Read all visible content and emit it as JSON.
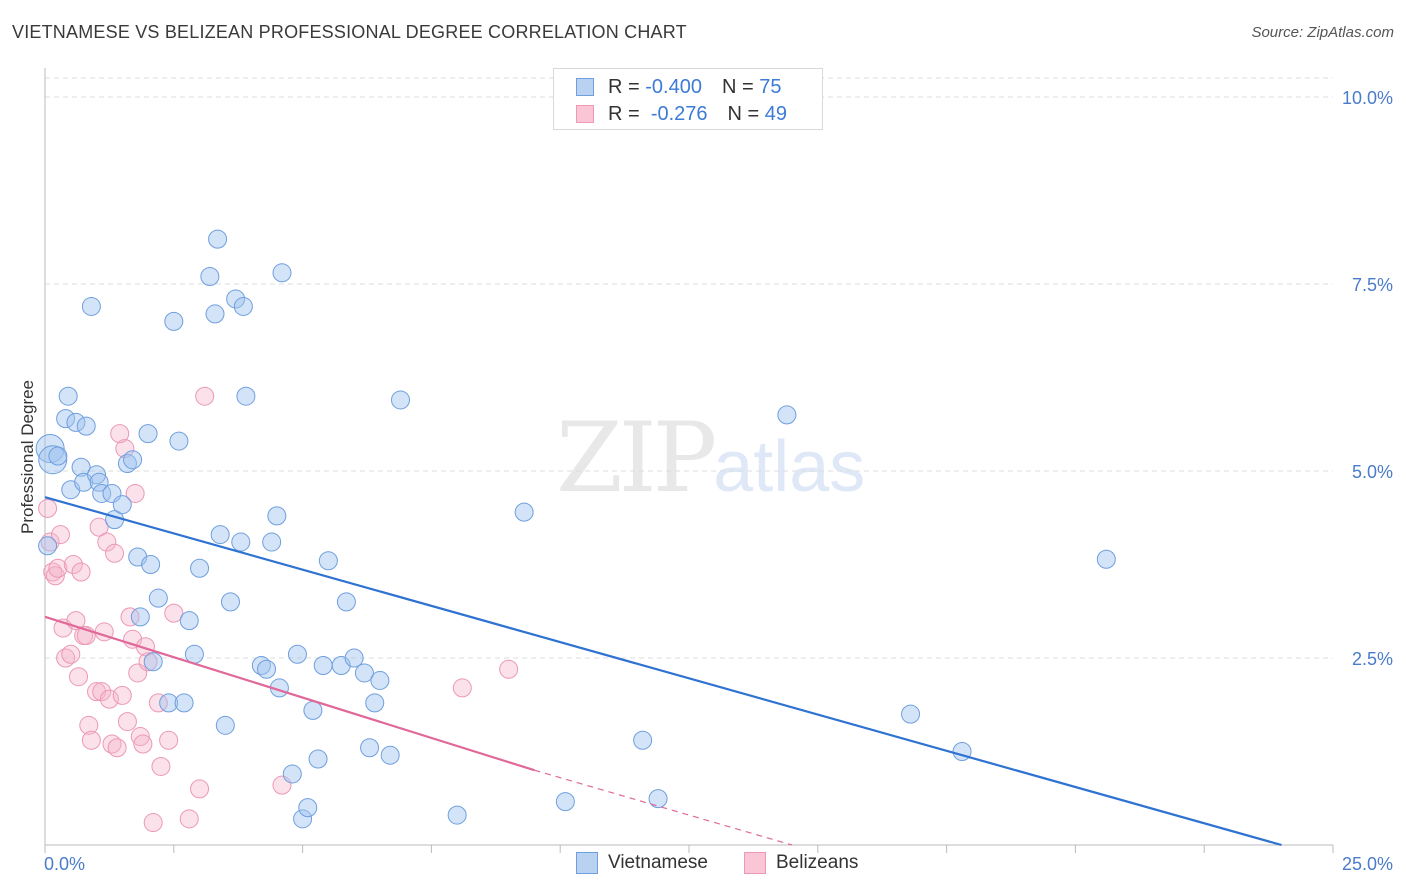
{
  "chart_data": {
    "type": "scatter",
    "title": "VIETNAMESE VS BELIZEAN PROFESSIONAL DEGREE CORRELATION CHART",
    "source": "Source: ZipAtlas.com",
    "xlabel": "",
    "ylabel": "Professional Degree",
    "xlim": [
      0,
      25
    ],
    "ylim": [
      0,
      10.5
    ],
    "x_ticks": [
      "0.0%",
      "25.0%"
    ],
    "y_ticks": [
      {
        "value": 2.5,
        "label": "2.5%"
      },
      {
        "value": 5.0,
        "label": "5.0%"
      },
      {
        "value": 7.5,
        "label": "7.5%"
      },
      {
        "value": 10.0,
        "label": "10.0%"
      }
    ],
    "watermark": {
      "zip": "ZIP",
      "atlas": "atlas"
    },
    "legend_top": [
      {
        "r_label": "R =",
        "r_value": "-0.400",
        "n_label": "N =",
        "n_value": "75"
      },
      {
        "r_label": "R =",
        "r_value": "-0.276",
        "n_label": "N =",
        "n_value": "49"
      }
    ],
    "series": [
      {
        "name": "Vietnamese",
        "color": "#8ab4e8",
        "line_color": "#2e72d2",
        "trend": {
          "x0": 0,
          "y0": 4.65,
          "x1": 24.0,
          "y1": 0.0
        },
        "points": [
          [
            0.1,
            5.3
          ],
          [
            0.15,
            5.15
          ],
          [
            0.25,
            5.2
          ],
          [
            0.4,
            5.7
          ],
          [
            0.45,
            6.0
          ],
          [
            0.5,
            4.75
          ],
          [
            0.6,
            5.65
          ],
          [
            0.7,
            5.05
          ],
          [
            0.75,
            4.85
          ],
          [
            0.8,
            5.6
          ],
          [
            0.9,
            7.2
          ],
          [
            1.0,
            4.95
          ],
          [
            1.05,
            4.85
          ],
          [
            1.1,
            4.7
          ],
          [
            1.3,
            4.7
          ],
          [
            1.35,
            4.35
          ],
          [
            1.5,
            4.55
          ],
          [
            1.6,
            5.1
          ],
          [
            1.7,
            5.15
          ],
          [
            1.8,
            3.85
          ],
          [
            1.85,
            3.05
          ],
          [
            2.0,
            5.5
          ],
          [
            2.05,
            3.75
          ],
          [
            2.1,
            2.45
          ],
          [
            2.2,
            3.3
          ],
          [
            2.4,
            1.9
          ],
          [
            2.5,
            7.0
          ],
          [
            2.6,
            5.4
          ],
          [
            2.7,
            1.9
          ],
          [
            2.8,
            3.0
          ],
          [
            2.9,
            2.55
          ],
          [
            3.0,
            3.7
          ],
          [
            3.2,
            7.6
          ],
          [
            3.3,
            7.1
          ],
          [
            3.35,
            8.1
          ],
          [
            3.4,
            4.15
          ],
          [
            3.5,
            1.6
          ],
          [
            3.6,
            3.25
          ],
          [
            3.7,
            7.3
          ],
          [
            3.8,
            4.05
          ],
          [
            3.85,
            7.2
          ],
          [
            3.9,
            6.0
          ],
          [
            4.2,
            2.4
          ],
          [
            4.3,
            2.35
          ],
          [
            4.4,
            4.05
          ],
          [
            4.5,
            4.4
          ],
          [
            4.55,
            2.1
          ],
          [
            4.6,
            7.65
          ],
          [
            4.8,
            0.95
          ],
          [
            4.9,
            2.55
          ],
          [
            5.0,
            0.35
          ],
          [
            5.1,
            0.5
          ],
          [
            5.2,
            1.8
          ],
          [
            5.3,
            1.15
          ],
          [
            5.4,
            2.4
          ],
          [
            5.5,
            3.8
          ],
          [
            5.75,
            2.4
          ],
          [
            5.85,
            3.25
          ],
          [
            6.0,
            2.5
          ],
          [
            6.2,
            2.3
          ],
          [
            6.3,
            1.3
          ],
          [
            6.4,
            1.9
          ],
          [
            6.5,
            2.2
          ],
          [
            6.7,
            1.2
          ],
          [
            6.9,
            5.95
          ],
          [
            8.0,
            0.4
          ],
          [
            9.3,
            4.45
          ],
          [
            10.1,
            0.58
          ],
          [
            11.6,
            1.4
          ],
          [
            11.9,
            0.62
          ],
          [
            14.4,
            5.75
          ],
          [
            16.8,
            1.75
          ],
          [
            17.8,
            1.25
          ],
          [
            20.6,
            3.82
          ],
          [
            0.05,
            4.0
          ]
        ]
      },
      {
        "name": "Belizeans",
        "color": "#f2a6c0",
        "line_color": "#e0699a",
        "trend": {
          "x0": 0,
          "y0": 3.05,
          "x1": 9.5,
          "y1": 1.0
        },
        "trend_dashed": {
          "x0": 9.5,
          "y0": 1.0,
          "x1": 14.5,
          "y1": 0.0
        },
        "points": [
          [
            0.05,
            4.5
          ],
          [
            0.1,
            4.05
          ],
          [
            0.15,
            3.65
          ],
          [
            0.2,
            3.6
          ],
          [
            0.25,
            3.7
          ],
          [
            0.3,
            4.15
          ],
          [
            0.35,
            2.9
          ],
          [
            0.4,
            2.5
          ],
          [
            0.5,
            2.55
          ],
          [
            0.55,
            3.75
          ],
          [
            0.6,
            3.0
          ],
          [
            0.65,
            2.25
          ],
          [
            0.7,
            3.65
          ],
          [
            0.75,
            2.8
          ],
          [
            0.8,
            2.8
          ],
          [
            0.85,
            1.6
          ],
          [
            0.9,
            1.4
          ],
          [
            1.0,
            2.05
          ],
          [
            1.05,
            4.25
          ],
          [
            1.1,
            2.05
          ],
          [
            1.15,
            2.85
          ],
          [
            1.2,
            4.05
          ],
          [
            1.25,
            1.95
          ],
          [
            1.3,
            1.35
          ],
          [
            1.35,
            3.9
          ],
          [
            1.4,
            1.3
          ],
          [
            1.5,
            2.0
          ],
          [
            1.55,
            5.3
          ],
          [
            1.6,
            1.65
          ],
          [
            1.65,
            3.05
          ],
          [
            1.7,
            2.75
          ],
          [
            1.75,
            4.7
          ],
          [
            1.8,
            2.3
          ],
          [
            1.85,
            1.45
          ],
          [
            1.9,
            1.35
          ],
          [
            1.95,
            2.65
          ],
          [
            2.0,
            2.45
          ],
          [
            2.1,
            0.3
          ],
          [
            2.2,
            1.9
          ],
          [
            2.25,
            1.05
          ],
          [
            2.4,
            1.4
          ],
          [
            2.5,
            3.1
          ],
          [
            2.8,
            0.35
          ],
          [
            3.0,
            0.75
          ],
          [
            3.1,
            6.0
          ],
          [
            4.6,
            0.8
          ],
          [
            8.1,
            2.1
          ],
          [
            9.0,
            2.35
          ],
          [
            1.45,
            5.5
          ]
        ]
      }
    ]
  }
}
